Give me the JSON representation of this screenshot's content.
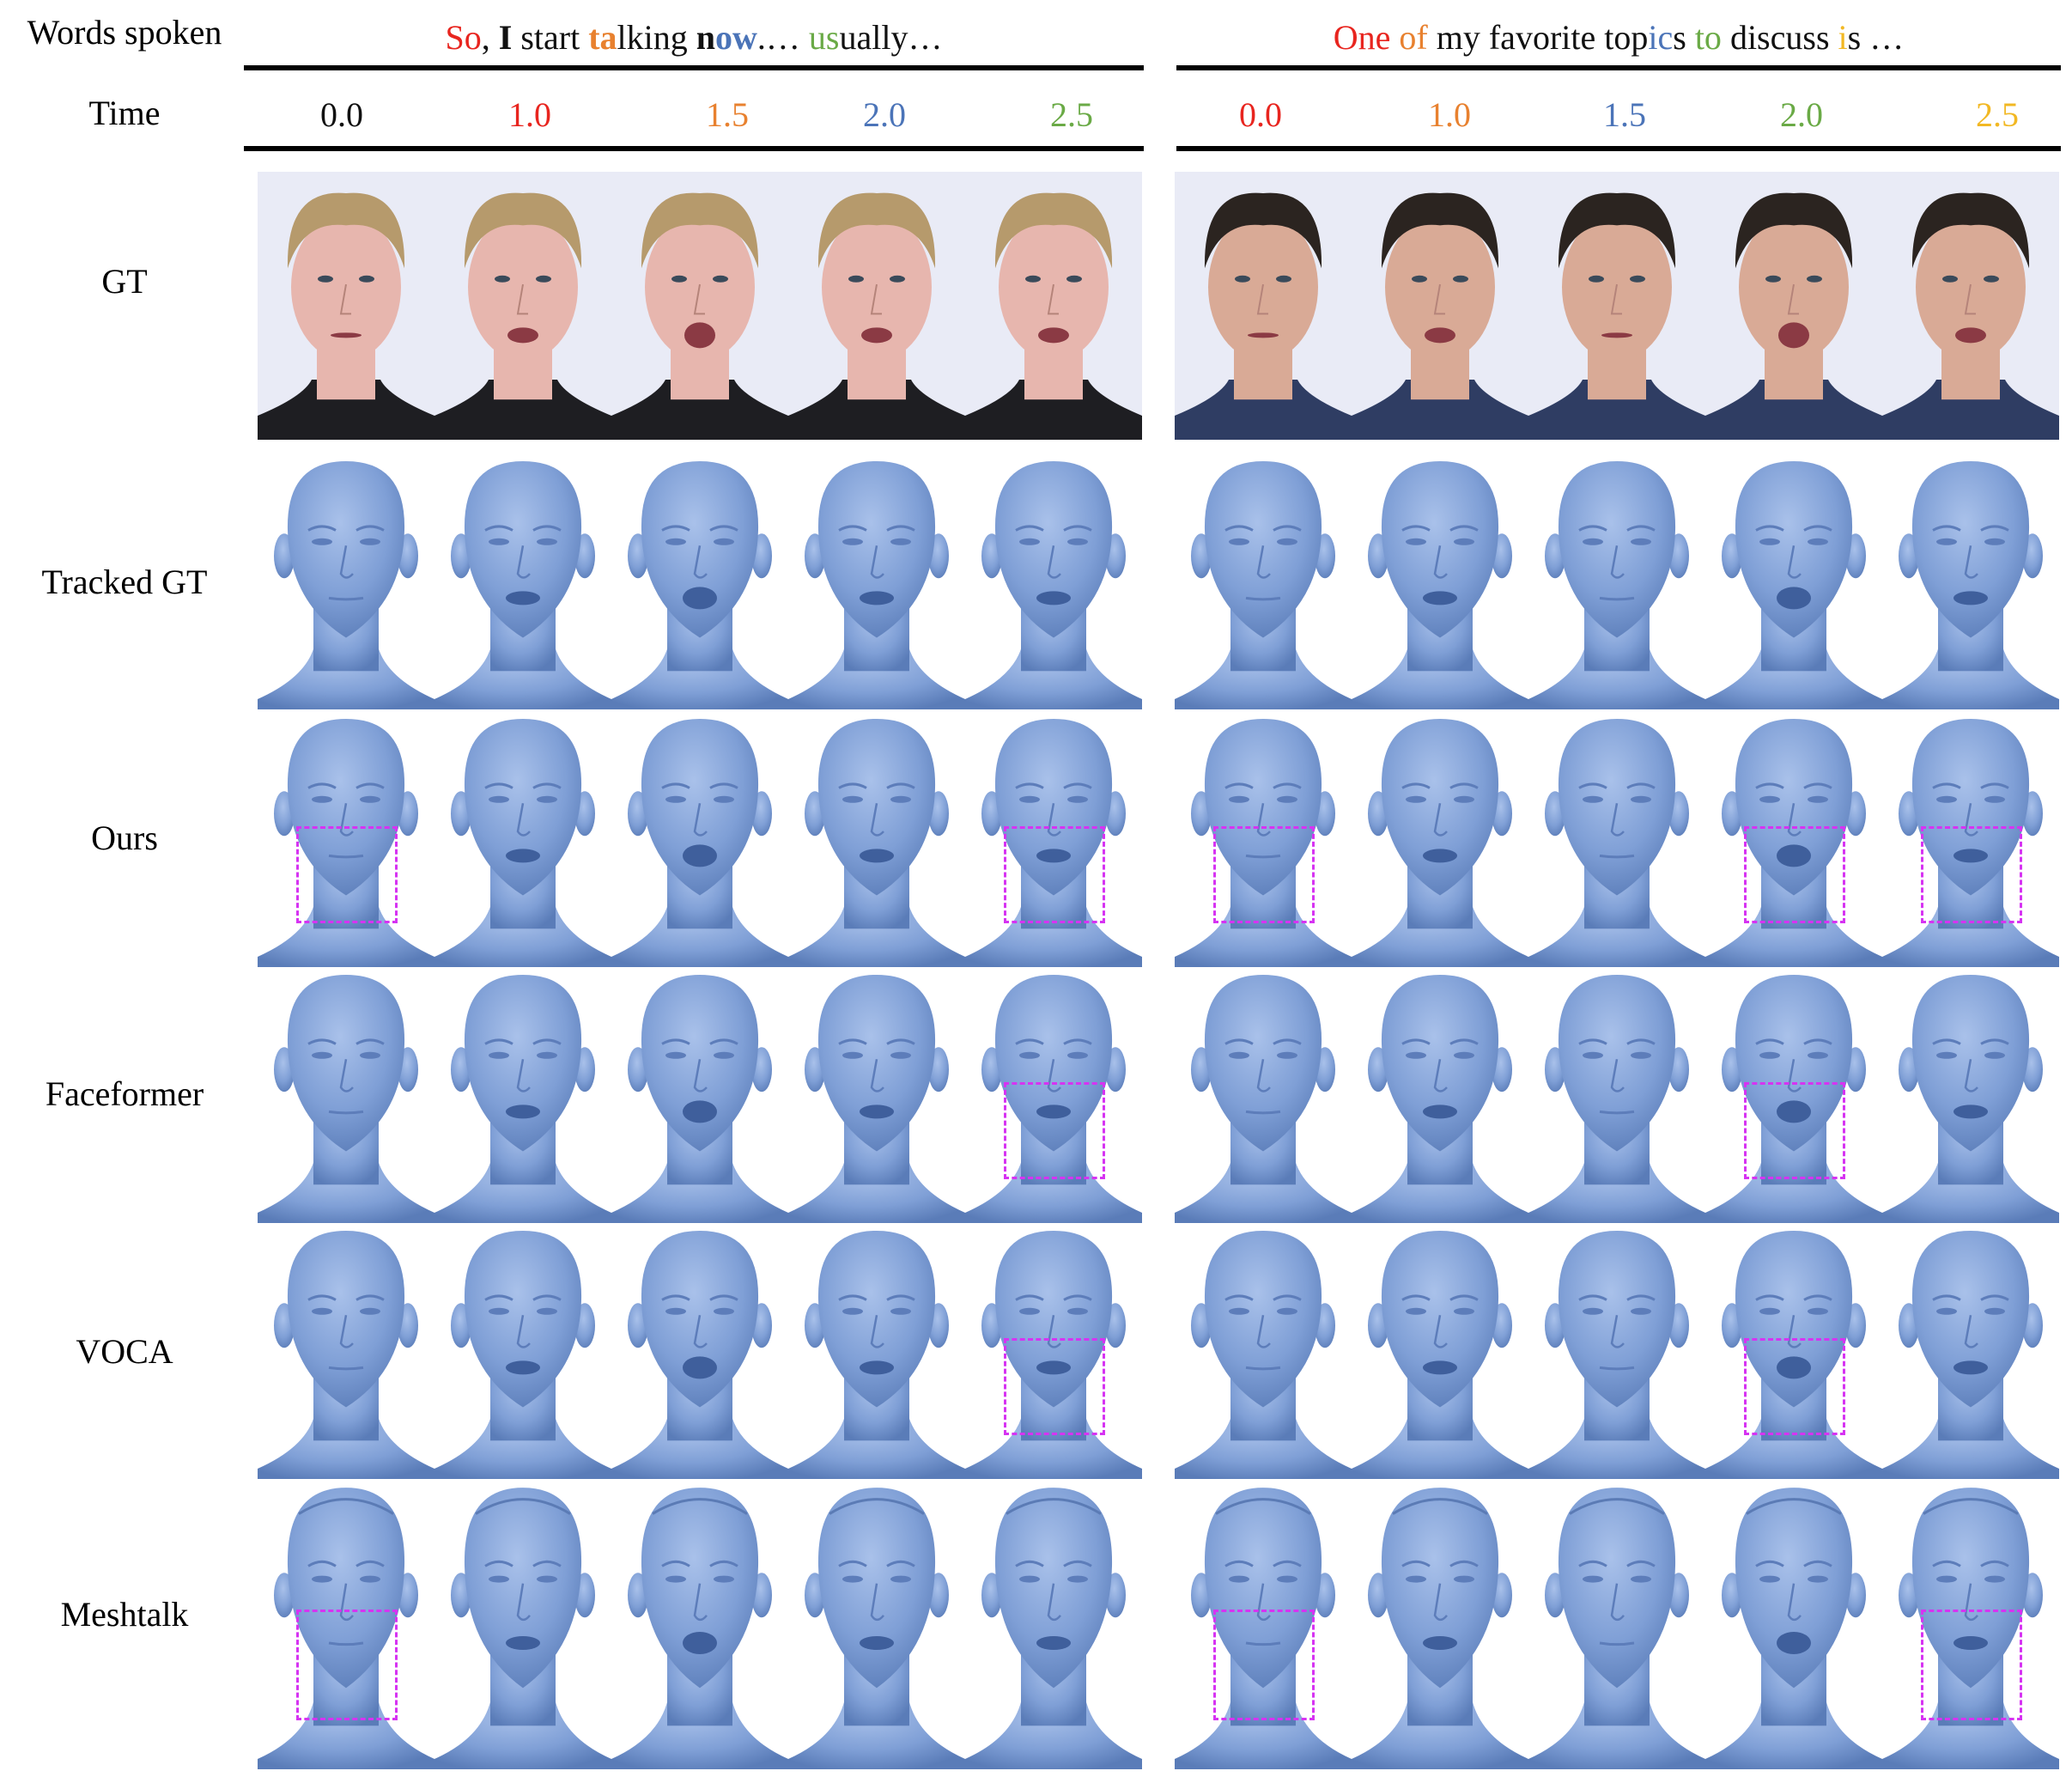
{
  "header": {
    "words_label": "Words spoken",
    "time_label": "Time"
  },
  "panels": [
    {
      "sentence": [
        {
          "t": "So",
          "c": "#e8251f",
          "b": false
        },
        {
          "t": ", ",
          "c": "#111111",
          "b": false
        },
        {
          "t": "I",
          "c": "#111111",
          "b": true
        },
        {
          "t": " start ",
          "c": "#111111",
          "b": false
        },
        {
          "t": "ta",
          "c": "#e8812f",
          "b": true
        },
        {
          "t": "lking ",
          "c": "#111111",
          "b": false
        },
        {
          "t": "n",
          "c": "#111111",
          "b": true
        },
        {
          "t": "ow",
          "c": "#4b74b8",
          "b": true
        },
        {
          "t": ".… ",
          "c": "#111111",
          "b": false
        },
        {
          "t": "us",
          "c": "#6aaa46",
          "b": false
        },
        {
          "t": "ually…",
          "c": "#111111",
          "b": false
        }
      ],
      "times": [
        {
          "v": "0.0",
          "c": "#111111"
        },
        {
          "v": "1.0",
          "c": "#e8251f"
        },
        {
          "v": "1.5",
          "c": "#e8812f"
        },
        {
          "v": "2.0",
          "c": "#4b74b8"
        },
        {
          "v": "2.5",
          "c": "#6aaa46"
        }
      ]
    },
    {
      "sentence": [
        {
          "t": "One",
          "c": "#e8251f",
          "b": false
        },
        {
          "t": " ",
          "c": "#111111",
          "b": false
        },
        {
          "t": "of",
          "c": "#e8812f",
          "b": false
        },
        {
          "t": " my favorite top",
          "c": "#111111",
          "b": false
        },
        {
          "t": "ic",
          "c": "#4b74b8",
          "b": false
        },
        {
          "t": "s ",
          "c": "#111111",
          "b": false
        },
        {
          "t": "to",
          "c": "#6aaa46",
          "b": false
        },
        {
          "t": " discuss ",
          "c": "#111111",
          "b": false
        },
        {
          "t": "i",
          "c": "#f2b823",
          "b": false
        },
        {
          "t": "s …",
          "c": "#111111",
          "b": false
        }
      ],
      "times": [
        {
          "v": "0.0",
          "c": "#e8251f"
        },
        {
          "v": "1.0",
          "c": "#e8812f"
        },
        {
          "v": "1.5",
          "c": "#4b74b8"
        },
        {
          "v": "2.0",
          "c": "#6aaa46"
        },
        {
          "v": "2.5",
          "c": "#f2b823"
        }
      ]
    }
  ],
  "rows": [
    {
      "label": "GT",
      "kind": "photo",
      "highlight": [
        [],
        []
      ]
    },
    {
      "label": "Tracked GT",
      "kind": "mesh",
      "highlight": [
        [],
        []
      ]
    },
    {
      "label": "Ours",
      "kind": "mesh",
      "highlight": [
        [
          0,
          4
        ],
        [
          0,
          3,
          4
        ]
      ]
    },
    {
      "label": "Faceformer",
      "kind": "mesh",
      "highlight": [
        [
          4
        ],
        [
          3
        ]
      ]
    },
    {
      "label": "VOCA",
      "kind": "mesh",
      "highlight": [
        [
          4
        ],
        [
          3
        ]
      ]
    },
    {
      "label": "Meshtalk",
      "kind": "mesh_detailed",
      "highlight": [
        [
          0
        ],
        [
          0,
          4
        ]
      ]
    }
  ],
  "colors": {
    "mesh": "#7f9fd6",
    "mesh_dark": "#5a7cb8",
    "highlight": "#d633f2"
  }
}
